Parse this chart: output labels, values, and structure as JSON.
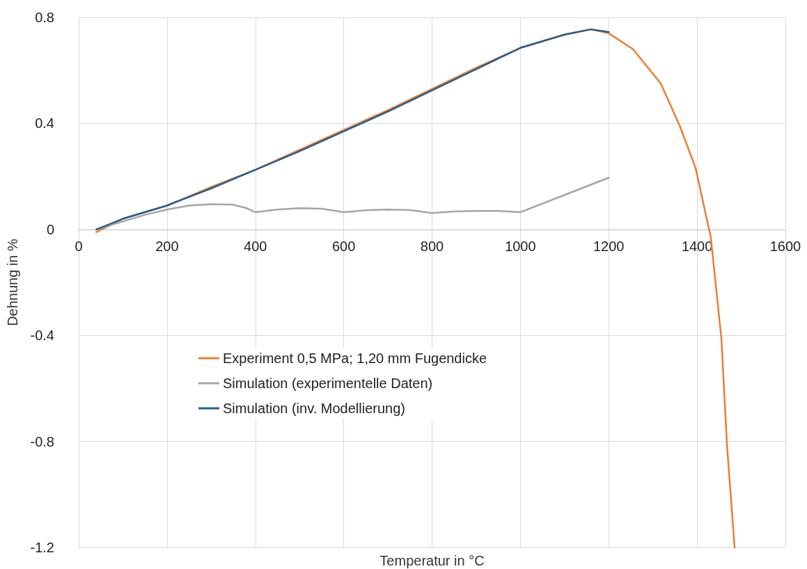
{
  "chart_data": {
    "type": "line",
    "xlabel": "Temperatur in °C",
    "ylabel": "Dehnung in %",
    "xlim": [
      0,
      1600
    ],
    "xticks": [
      0,
      200,
      400,
      600,
      800,
      1000,
      1200,
      1400,
      1600
    ],
    "ylim": [
      -1.2,
      0.8
    ],
    "yticks": [
      -1.2,
      -0.8,
      -0.4,
      0,
      0.4,
      0.8
    ],
    "grid": true,
    "legend": "left",
    "marker": "none",
    "line_style": "solid",
    "series": [
      {
        "name": "Experiment 0,5 MPa; 1,20 mm Fugendicke",
        "color": "#ed7d31",
        "x": [
          40,
          100,
          200,
          300,
          400,
          500,
          600,
          700,
          800,
          900,
          1000,
          1100,
          1160,
          1200,
          1255,
          1318,
          1361,
          1397,
          1431,
          1455,
          1468,
          1485
        ],
        "values": [
          -0.01,
          0.04,
          0.09,
          0.16,
          0.225,
          0.3,
          0.375,
          0.45,
          0.53,
          0.61,
          0.685,
          0.735,
          0.755,
          0.74,
          0.68,
          0.55,
          0.39,
          0.23,
          -0.03,
          -0.41,
          -0.82,
          -1.2
        ]
      },
      {
        "name": "Simulation (experimentelle Daten)",
        "color": "#a5a5a5",
        "x": [
          40,
          100,
          150,
          200,
          250,
          300,
          350,
          380,
          400,
          450,
          500,
          550,
          600,
          650,
          700,
          750,
          800,
          850,
          900,
          950,
          1000,
          1100,
          1200
        ],
        "values": [
          0,
          0.03,
          0.055,
          0.075,
          0.09,
          0.095,
          0.093,
          0.08,
          0.065,
          0.075,
          0.08,
          0.078,
          0.065,
          0.072,
          0.075,
          0.073,
          0.062,
          0.068,
          0.07,
          0.07,
          0.065,
          0.13,
          0.195
        ]
      },
      {
        "name": "Simulation (inv. Modellierung)",
        "color": "#255e91",
        "x": [
          40,
          100,
          200,
          300,
          400,
          500,
          600,
          700,
          800,
          900,
          1000,
          1100,
          1160,
          1200
        ],
        "values": [
          0,
          0.04,
          0.09,
          0.155,
          0.225,
          0.295,
          0.37,
          0.445,
          0.525,
          0.605,
          0.685,
          0.735,
          0.755,
          0.745
        ]
      }
    ]
  }
}
